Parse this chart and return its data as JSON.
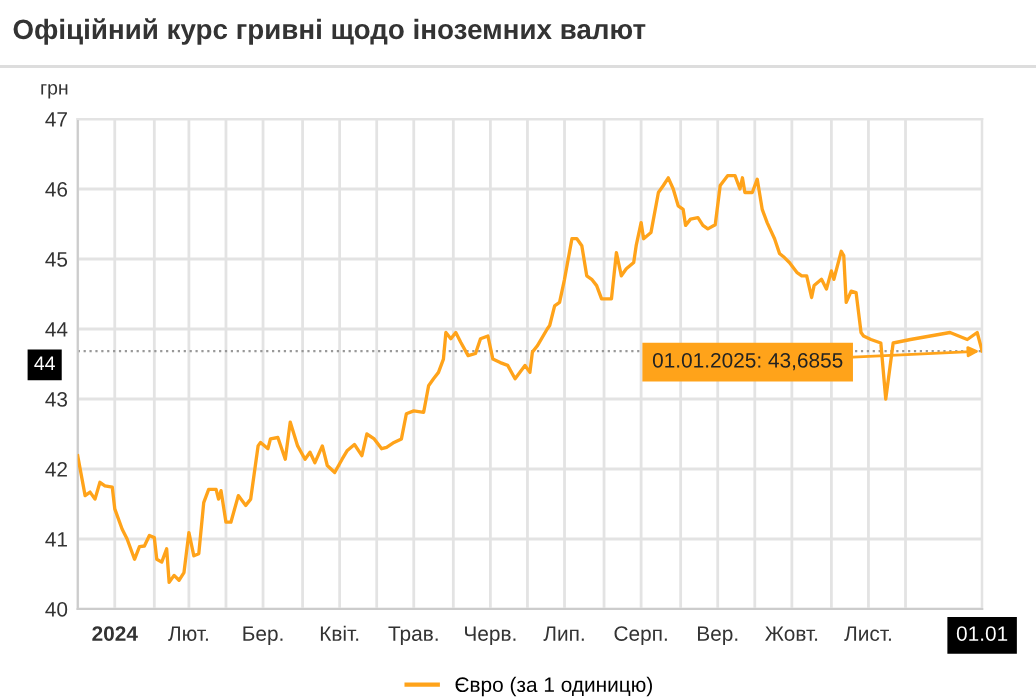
{
  "chart_data": {
    "type": "line",
    "title": "Офіційний курс гривні щодо іноземних валют",
    "ylabel": "грн",
    "x": [
      "2024-01-01",
      "2024-01-02",
      "2024-01-04",
      "2024-01-06",
      "2024-01-08",
      "2024-01-10",
      "2024-01-12",
      "2024-01-15",
      "2024-01-16",
      "2024-01-19",
      "2024-01-21",
      "2024-01-24",
      "2024-01-26",
      "2024-01-28",
      "2024-01-30",
      "2024-02-01",
      "2024-02-02",
      "2024-02-04",
      "2024-02-06",
      "2024-02-07",
      "2024-02-09",
      "2024-02-11",
      "2024-02-13",
      "2024-02-15",
      "2024-02-17",
      "2024-02-19",
      "2024-02-21",
      "2024-02-23",
      "2024-02-26",
      "2024-02-27",
      "2024-02-28",
      "2024-03-01",
      "2024-03-03",
      "2024-03-06",
      "2024-03-09",
      "2024-03-11",
      "2024-03-14",
      "2024-03-15",
      "2024-03-18",
      "2024-03-19",
      "2024-03-22",
      "2024-03-25",
      "2024-03-27",
      "2024-03-30",
      "2024-04-02",
      "2024-04-04",
      "2024-04-06",
      "2024-04-09",
      "2024-04-11",
      "2024-04-14",
      "2024-04-17",
      "2024-04-19",
      "2024-04-22",
      "2024-04-25",
      "2024-04-27",
      "2024-04-30",
      "2024-05-03",
      "2024-05-05",
      "2024-05-08",
      "2024-05-11",
      "2024-05-13",
      "2024-05-16",
      "2024-05-20",
      "2024-05-22",
      "2024-05-24",
      "2024-05-26",
      "2024-05-28",
      "2024-05-29",
      "2024-05-31",
      "2024-06-02",
      "2024-06-04",
      "2024-06-07",
      "2024-06-10",
      "2024-06-12",
      "2024-06-15",
      "2024-06-17",
      "2024-06-20",
      "2024-06-23",
      "2024-06-26",
      "2024-06-30",
      "2024-07-02",
      "2024-07-03",
      "2024-07-05",
      "2024-07-09",
      "2024-07-10",
      "2024-07-12",
      "2024-07-14",
      "2024-07-16",
      "2024-07-19",
      "2024-07-21",
      "2024-07-23",
      "2024-07-25",
      "2024-07-27",
      "2024-07-29",
      "2024-07-31",
      "2024-08-04",
      "2024-08-06",
      "2024-08-08",
      "2024-08-10",
      "2024-08-13",
      "2024-08-14",
      "2024-08-16",
      "2024-08-17",
      "2024-08-20",
      "2024-08-23",
      "2024-08-25",
      "2024-08-27",
      "2024-08-29",
      "2024-08-31",
      "2024-09-02",
      "2024-09-03",
      "2024-09-05",
      "2024-09-08",
      "2024-09-10",
      "2024-09-12",
      "2024-09-15",
      "2024-09-17",
      "2024-09-20",
      "2024-09-23",
      "2024-09-25",
      "2024-09-26",
      "2024-09-27",
      "2024-09-30",
      "2024-10-02",
      "2024-10-04",
      "2024-10-06",
      "2024-10-09",
      "2024-10-11",
      "2024-10-13",
      "2024-10-15",
      "2024-10-18",
      "2024-10-20",
      "2024-10-22",
      "2024-10-24",
      "2024-10-25",
      "2024-10-28",
      "2024-10-30",
      "2024-11-01",
      "2024-11-02",
      "2024-11-05",
      "2024-11-06",
      "2024-11-07",
      "2024-11-09",
      "2024-11-11",
      "2024-11-13",
      "2024-11-14",
      "2024-11-17",
      "2024-11-21",
      "2024-11-23",
      "2024-11-26",
      "2024-12-03",
      "2024-12-11",
      "2024-12-19",
      "2024-12-26",
      "2024-12-30",
      "2025-01-01"
    ],
    "series": [
      {
        "name": "Євро (за 1 одиницю)",
        "color": "#ffa31a",
        "values": [
          42.19,
          42.0,
          41.62,
          41.67,
          41.57,
          41.81,
          41.76,
          41.74,
          41.43,
          41.14,
          41.0,
          40.71,
          40.89,
          40.9,
          41.05,
          41.02,
          40.71,
          40.67,
          40.86,
          40.38,
          40.48,
          40.41,
          40.52,
          41.09,
          40.76,
          40.79,
          41.52,
          41.71,
          41.71,
          41.57,
          41.69,
          41.24,
          41.24,
          41.62,
          41.48,
          41.57,
          42.33,
          42.38,
          42.29,
          42.43,
          42.45,
          42.14,
          42.67,
          42.33,
          42.14,
          42.24,
          42.09,
          42.33,
          42.05,
          41.95,
          42.14,
          42.26,
          42.35,
          42.19,
          42.5,
          42.43,
          42.29,
          42.31,
          42.38,
          42.43,
          42.79,
          42.83,
          42.81,
          43.19,
          43.29,
          43.38,
          43.57,
          43.95,
          43.86,
          43.95,
          43.81,
          43.62,
          43.65,
          43.86,
          43.9,
          43.57,
          43.52,
          43.48,
          43.29,
          43.48,
          43.38,
          43.67,
          43.76,
          44.0,
          44.05,
          44.33,
          44.38,
          44.71,
          45.29,
          45.29,
          45.19,
          44.76,
          44.71,
          44.62,
          44.43,
          44.43,
          45.09,
          44.76,
          44.86,
          44.95,
          45.19,
          45.52,
          45.29,
          45.38,
          45.95,
          46.05,
          46.16,
          46.0,
          45.76,
          45.71,
          45.48,
          45.57,
          45.59,
          45.48,
          45.43,
          45.49,
          46.05,
          46.19,
          46.19,
          46.0,
          46.16,
          45.95,
          45.95,
          46.14,
          45.71,
          45.52,
          45.29,
          45.08,
          45.02,
          44.95,
          44.81,
          44.76,
          44.76,
          44.45,
          44.62,
          44.71,
          44.57,
          44.83,
          44.71,
          45.11,
          45.05,
          44.38,
          44.54,
          44.52,
          43.95,
          43.9,
          43.85,
          43.8,
          43.0,
          43.8,
          43.85,
          43.9,
          43.95,
          43.85,
          43.95,
          43.6855
        ]
      }
    ],
    "xlim": [
      "2024-01-01",
      "2025-01-01"
    ],
    "xticks": [
      {
        "value": "2024-01-01",
        "label": null
      },
      {
        "value": "2024-01-16",
        "label": "2024"
      },
      {
        "value": "2024-02-01",
        "label": null
      },
      {
        "value": "2024-02-15",
        "label": "Лют."
      },
      {
        "value": "2024-03-01",
        "label": null
      },
      {
        "value": "2024-03-16",
        "label": "Бер."
      },
      {
        "value": "2024-04-01",
        "label": null
      },
      {
        "value": "2024-04-16",
        "label": "Квіт."
      },
      {
        "value": "2024-05-01",
        "label": null
      },
      {
        "value": "2024-05-16",
        "label": "Трав."
      },
      {
        "value": "2024-06-01",
        "label": null
      },
      {
        "value": "2024-06-16",
        "label": "Черв."
      },
      {
        "value": "2024-07-01",
        "label": null
      },
      {
        "value": "2024-07-16",
        "label": "Лип."
      },
      {
        "value": "2024-08-01",
        "label": null
      },
      {
        "value": "2024-08-16",
        "label": "Серп."
      },
      {
        "value": "2024-09-01",
        "label": null
      },
      {
        "value": "2024-09-16",
        "label": "Вер."
      },
      {
        "value": "2024-10-01",
        "label": null
      },
      {
        "value": "2024-10-16",
        "label": "Жовт."
      },
      {
        "value": "2024-11-01",
        "label": null
      },
      {
        "value": "2024-11-16",
        "label": "Лист."
      },
      {
        "value": "2024-12-01",
        "label": null
      },
      {
        "value": "2025-01-01",
        "label": "01.01"
      }
    ],
    "ylim": [
      40,
      47
    ],
    "yticks": [
      40,
      41,
      42,
      43,
      44,
      45,
      46,
      47
    ],
    "grid": true,
    "legend": "bottom",
    "marker": "none",
    "line_style": "solid",
    "ref_lines": [
      {
        "axis": "y",
        "value": 43.6855,
        "label": "44",
        "color": "#999999",
        "line_style": "dotted"
      }
    ],
    "annotations": [
      {
        "text": "01.01.2025: 43,6855",
        "x": "2025-01-01",
        "y": 43.6855
      }
    ]
  }
}
